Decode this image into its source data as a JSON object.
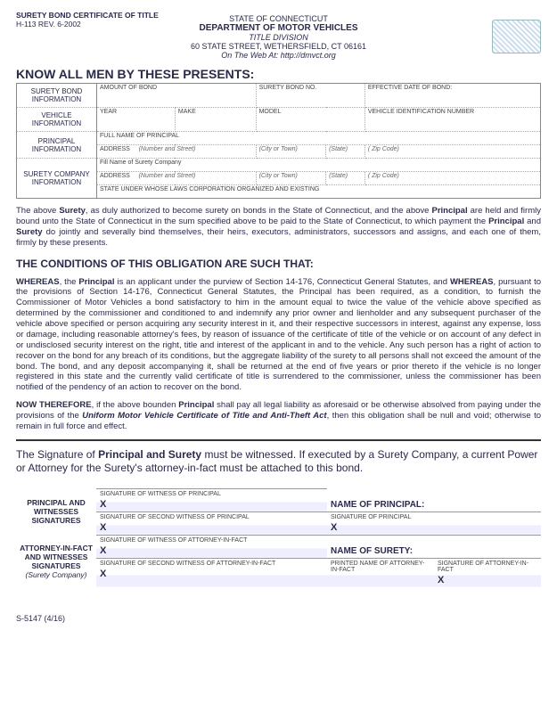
{
  "header": {
    "form_id": "SURETY BOND CERTIFICATE OF TITLE",
    "form_rev": "H-113 REV. 6-2002",
    "state": "STATE OF CONNECTICUT",
    "dept": "DEPARTMENT OF MOTOR VEHICLES",
    "division": "TITLE DIVISION",
    "address": "60 STATE STREET, WETHERSFIELD, CT 06161",
    "web": "On The Web At: http://dmvct.org"
  },
  "know_all": "KNOW ALL MEN BY THESE PRESENTS:",
  "info": {
    "sb_label": "SURETY BOND INFORMATION",
    "amount": "AMOUNT OF BOND",
    "bondno": "SURETY BOND NO.",
    "effdate": "EFFECTIVE DATE OF BOND:",
    "veh_label": "VEHICLE INFORMATION",
    "year": "YEAR",
    "make": "MAKE",
    "model": "MODEL",
    "vin": "VEHICLE IDENTIFICATION NUMBER",
    "prin_label": "PRINCIPAL INFORMATION",
    "fullname": "FULL NAME OF PRINCIPAL",
    "address": "ADDRESS",
    "ns": "(Number and Street)",
    "city": "(City or Town)",
    "st": "(State)",
    "zip": "( Zip Code)",
    "surety_label": "SURETY COMPANY INFORMATION",
    "fillname": "Fill Name of Surety Company",
    "stateunder": "STATE UNDER WHOSE LAWS CORPORATION ORGANIZED AND EXISTING"
  },
  "para1": "The above <b>Surety</b>, as duly authorized to become surety on bonds in the State of Connecticut, and the above <b>Principal</b> are held and firmly bound unto the State of Connecticut in the sum specified above to be paid to the State of Connecticut, to which payment the <b>Principal</b> and <b>Surety</b> do jointly and severally bind themselves, their heirs, executors, administrators, successors and assigns, and each one of them, firmly by these presents.",
  "cond_head": "THE CONDITIONS OF THIS OBLIGATION ARE SUCH THAT:",
  "para2": "<b>WHEREAS</b>, the <b>Principal</b> is an applicant under the purview of Section 14-176, Connecticut General Statutes, and <b>WHEREAS</b>, pursuant to the provisions of Section 14-176, Connecticut General Statutes, the Principal has been required, as a condition, to furnish the Commissioner of Motor Vehicles a bond satisfactory to him in the amount equal to twice the value of the vehicle above specified as determined by the commissioner and conditioned to and indemnify any prior owner and lienholder and any subsequent purchaser of the vehicle above specified or person acquiring any security interest in it, and their respective successors in interest, against any expense, loss or damage, including reasonable attorney's fees, by reason of issuance of the certificate of title of the vehicle or on account of any defect in or undisclosed security interest on the right, title and interest of the applicant in and to the vehicle. Any such person has a right of action to recover on the bond for any breach of its conditions, but the aggregate liability of the surety to all persons shall not exceed the amount of the bond. The bond, and any deposit accompanying it, shall be returned at the end of five years or prior thereto if the vehicle is no longer registered in this state and the currently valid certificate of title is surrendered to the commissioner, unless the commissioner has been notified of the pendency of an action to recover on the bond.",
  "para3": "<b>NOW THEREFORE</b>, if the above bounden <b>Principal</b> shall pay all legal liability as aforesaid or be otherwise absolved from paying under the provisions of the <i><b>Uniform Motor Vehicle Certificate of Title and Anti-Theft Act</b></i>, then this obligation shall be null and void; otherwise to remain in full force and effect.",
  "sig_note": "The Signature of <b>Principal and Surety</b> must be witnessed. If executed by a Surety Company, a current Power or Attorney for the Surety's attorney-in-fact must be attached to this bond.",
  "sig": {
    "block1": "PRINCIPAL AND WITNESSES SIGNATURES",
    "block2_a": "ATTORNEY-IN-FACT AND WITNESSES SIGNATURES",
    "block2_b": "(Surety Company)",
    "wp": "SIGNATURE OF WITNESS OF PRINCIPAL",
    "wp2": "SIGNATURE OF SECOND WITNESS OF PRINCIPAL",
    "nop": "NAME OF PRINCIPAL:",
    "sop": "SIGNATURE OF PRINCIPAL",
    "waif": "SIGNATURE OF WITNESS OF ATTORNEY-IN-FACT",
    "waif2": "SIGNATURE OF SECOND WITNESS OF ATTORNEY-IN-FACT",
    "nos": "NAME OF SURETY:",
    "pnaif": "PRINTED NAME OF ATTORNEY-IN-FACT",
    "saif": "SIGNATURE OF ATTORNEY-IN-FACT",
    "x": "X"
  },
  "footer": "S-5147 (4/16)"
}
